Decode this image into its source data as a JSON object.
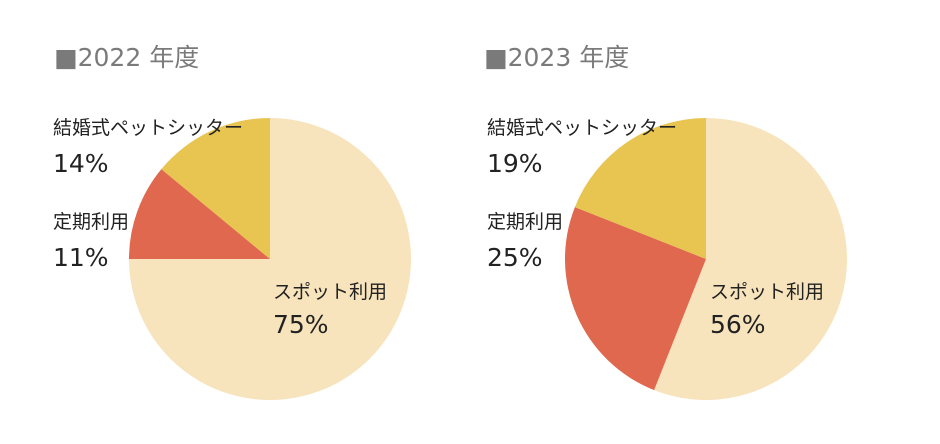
{
  "chart_data": [
    {
      "type": "pie",
      "title": "■2022 年度",
      "slices": [
        {
          "label": "スポット利用",
          "value": 75,
          "value_label": "75%",
          "color": "#f8e4bc"
        },
        {
          "label": "定期利用",
          "value": 11,
          "value_label": "11%",
          "color": "#df684e"
        },
        {
          "label": "結婚式ペットシッター",
          "value": 14,
          "value_label": "14%",
          "color": "#e8c450"
        }
      ]
    },
    {
      "type": "pie",
      "title": "■2023 年度",
      "slices": [
        {
          "label": "スポット利用",
          "value": 56,
          "value_label": "56%",
          "color": "#f8e4bc"
        },
        {
          "label": "定期利用",
          "value": 25,
          "value_label": "25%",
          "color": "#df684e"
        },
        {
          "label": "結婚式ペットシッター",
          "value": 19,
          "value_label": "19%",
          "color": "#e8c450"
        }
      ]
    }
  ]
}
